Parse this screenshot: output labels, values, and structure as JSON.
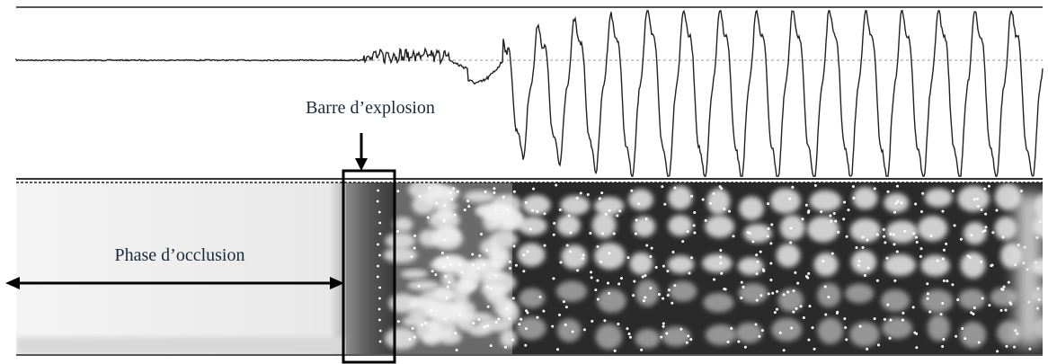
{
  "annotations": {
    "burst": "Barre d’explosion",
    "occlusion": "Phase d’occlusion"
  }
}
